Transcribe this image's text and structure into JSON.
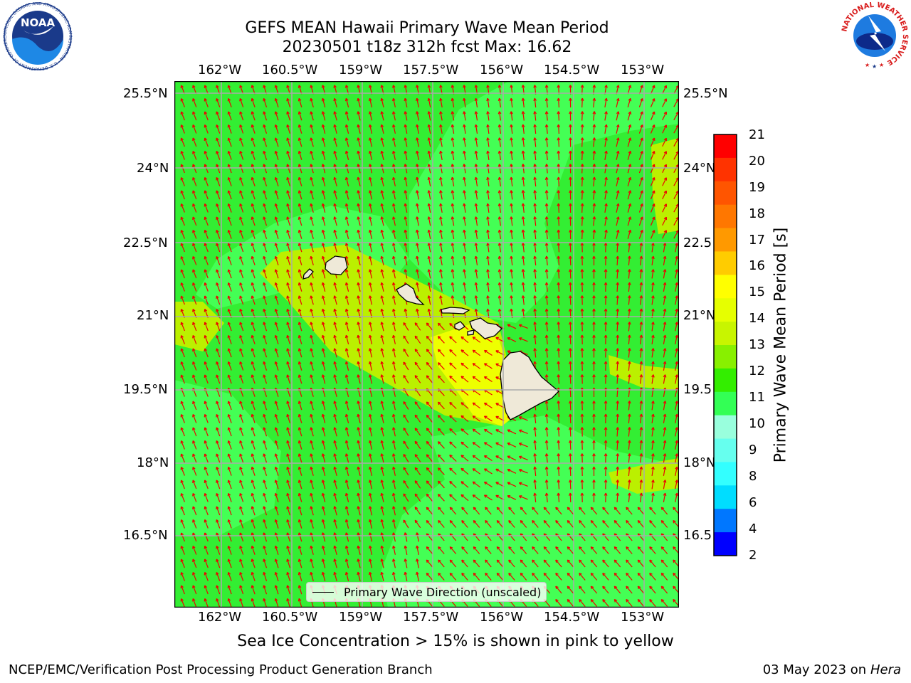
{
  "title_line1": "GEFS MEAN Hawaii Primary Wave Mean Period",
  "title_line2": "20230501 t18z 312h fcst   Max: 16.62",
  "lon_labels": [
    "162°W",
    "160.5°W",
    "159°W",
    "157.5°W",
    "156°W",
    "154.5°W",
    "153°W"
  ],
  "lat_labels": [
    "25.5°N",
    "24°N",
    "22.5°N",
    "21°N",
    "19.5°N",
    "18°N",
    "16.5°N"
  ],
  "lat_labels_right": [
    "25.5°N",
    "24°N",
    "22.5",
    "21°N",
    "19.5",
    "18°N",
    "16.5"
  ],
  "legend_label": "Primary Wave Direction (unscaled)",
  "colorbar": {
    "title": "Primary Wave Mean Period [s]",
    "ticks": [
      "21",
      "20",
      "19",
      "18",
      "17",
      "16",
      "15",
      "14",
      "13",
      "12",
      "11",
      "10",
      "9",
      "8",
      "6",
      "4",
      "2"
    ],
    "colors": [
      "#ff0000",
      "#ff3300",
      "#ff5500",
      "#ff7700",
      "#ff9900",
      "#ffcc00",
      "#ffff00",
      "#e6ff00",
      "#c8f500",
      "#88f000",
      "#33ee00",
      "#33ff55",
      "#99ffdd",
      "#66ffee",
      "#33ffff",
      "#00ddff",
      "#0077ff",
      "#0000ff"
    ]
  },
  "bottom_note": "Sea Ice Concentration > 15% is shown in pink to yellow",
  "footer_left": "NCEP/EMC/Verification Post Processing Product Generation Branch",
  "footer_date": "03 May 2023 on",
  "footer_machine": "Hera",
  "logos": {
    "noaa_text": "NOAA",
    "noaa_ring": "NATIONAL OCEANIC AND ATMOSPHERIC ADMINISTRATION · U.S. DEPARTMENT OF COMMERCE ·",
    "nws_ring": "NATIONAL WEATHER SERVICE"
  },
  "map_colors": {
    "base": "#33ee33",
    "light_green": "#44ff55",
    "yellow_green": "#bbf000",
    "yellow": "#eeff00",
    "land": "#efe9d8",
    "arrow": "#ee0000",
    "grid": "#aaaaaa"
  }
}
